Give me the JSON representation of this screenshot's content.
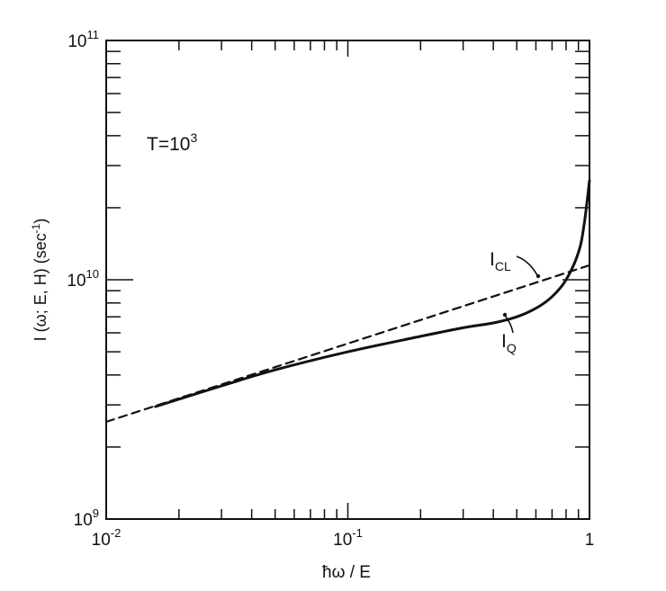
{
  "chart_data": {
    "type": "line",
    "xscale": "log",
    "yscale": "log",
    "xlim": [
      0.01,
      1
    ],
    "ylim": [
      1000000000.0,
      100000000000.0
    ],
    "x_ticks": [
      {
        "value": 0.01,
        "base": "10",
        "exp": "-2"
      },
      {
        "value": 0.1,
        "base": "10",
        "exp": "-1"
      },
      {
        "value": 1,
        "base": "1",
        "exp": ""
      }
    ],
    "y_ticks": [
      {
        "value": 1000000000.0,
        "base": "10",
        "exp": "9"
      },
      {
        "value": 10000000000.0,
        "base": "10",
        "exp": "10"
      },
      {
        "value": 100000000000.0,
        "base": "10",
        "exp": "11"
      }
    ],
    "xlabel": "ħω / E",
    "ylabel": "I (ω; E, H) (sec",
    "ylabel_sup": "-1",
    "ylabel_end": ")",
    "annotation": {
      "base": "T=10",
      "sup": "3"
    },
    "grid": false,
    "series": [
      {
        "name_main": "I",
        "name_sub": "CL",
        "style": "dashed",
        "x": [
          0.01,
          1
        ],
        "y": [
          2550000000.0,
          11500000000.0
        ]
      },
      {
        "name_main": "I",
        "name_sub": "Q",
        "style": "solid",
        "x": [
          0.016,
          0.03,
          0.05,
          0.1,
          0.2,
          0.3,
          0.4,
          0.5,
          0.6,
          0.7,
          0.8,
          0.9,
          0.95,
          1.0
        ],
        "y": [
          2950000000.0,
          3600000000.0,
          4200000000.0,
          5000000000.0,
          5800000000.0,
          6300000000.0,
          6600000000.0,
          7000000000.0,
          7600000000.0,
          8500000000.0,
          10000000000.0,
          13000000000.0,
          17000000000.0,
          26000000000.0
        ]
      }
    ]
  }
}
